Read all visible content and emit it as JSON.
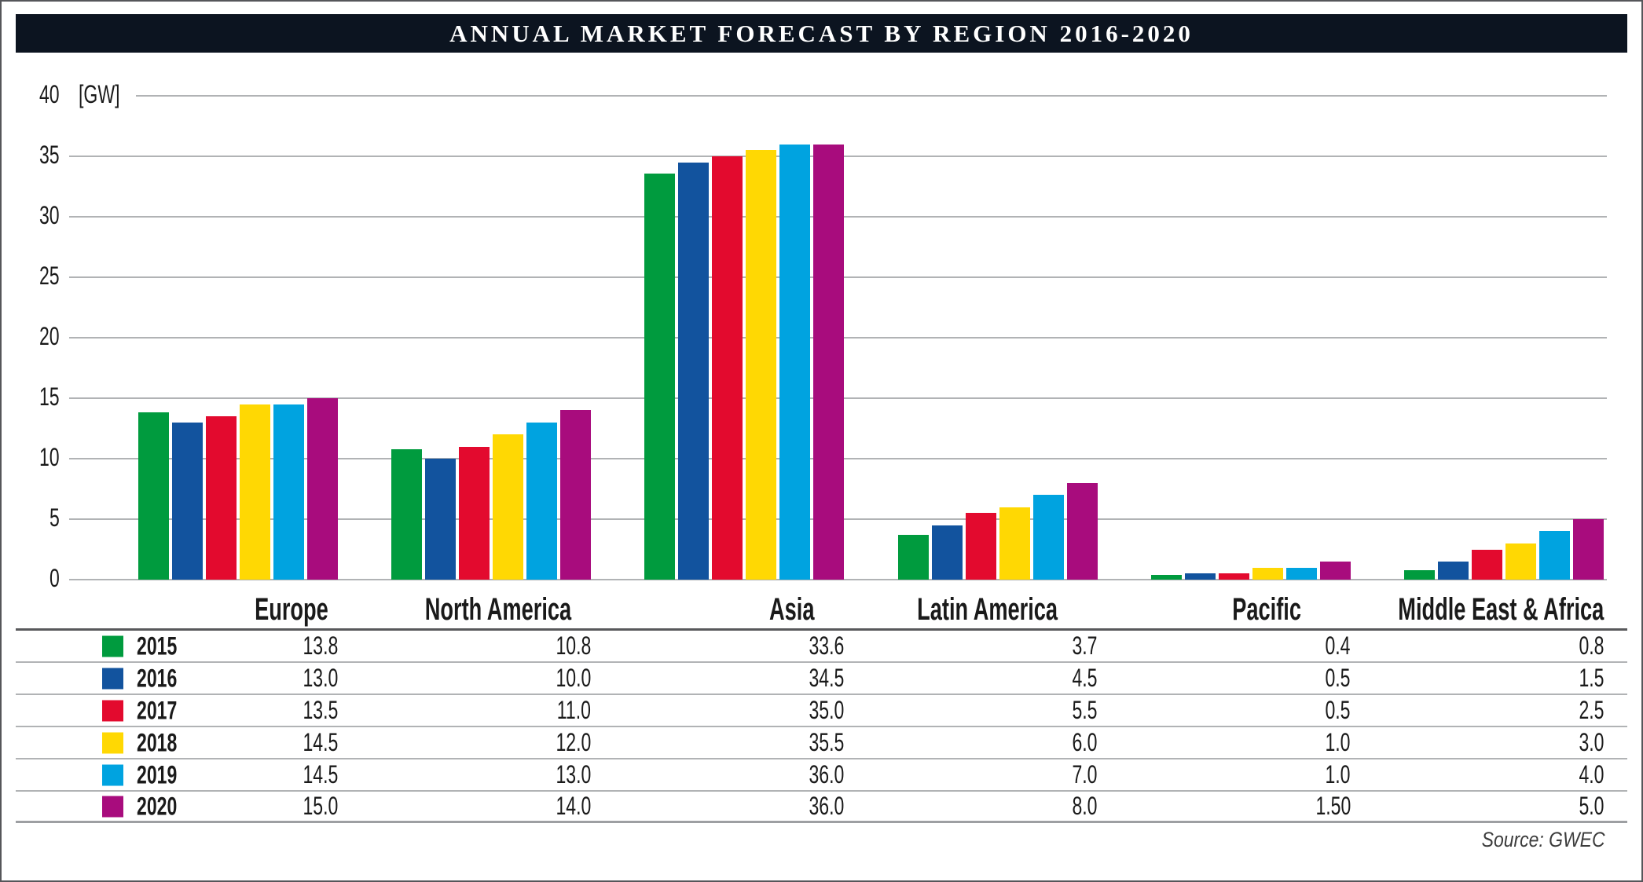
{
  "chart_data": {
    "type": "bar",
    "title": "ANNUAL MARKET FORECAST BY REGION 2016-2020",
    "unit_label": "[GW]",
    "ylabel": "GW",
    "ylim": [
      0,
      40
    ],
    "y_ticks": [
      40,
      35,
      30,
      25,
      20,
      15,
      10,
      5,
      0
    ],
    "grid": "horizontal",
    "legend_position": "table-left-column",
    "categories": [
      "Europe",
      "North America",
      "Asia",
      "Latin America",
      "Pacific",
      "Middle East & Africa"
    ],
    "series": [
      {
        "name": "2015",
        "color": "#009b3e",
        "values": [
          13.8,
          10.8,
          33.6,
          3.7,
          0.4,
          0.8
        ],
        "display": [
          "13.8",
          "10.8",
          "33.6",
          "3.7",
          "0.4",
          "0.8"
        ]
      },
      {
        "name": "2016",
        "color": "#12539e",
        "values": [
          13.0,
          10.0,
          34.5,
          4.5,
          0.5,
          1.5
        ],
        "display": [
          "13.0",
          "10.0",
          "34.5",
          "4.5",
          "0.5",
          "1.5"
        ]
      },
      {
        "name": "2017",
        "color": "#e30a2e",
        "values": [
          13.5,
          11.0,
          35.0,
          5.5,
          0.5,
          2.5
        ],
        "display": [
          "13.5",
          "11.0",
          "35.0",
          "5.5",
          "0.5",
          "2.5"
        ]
      },
      {
        "name": "2018",
        "color": "#ffd803",
        "values": [
          14.5,
          12.0,
          35.5,
          6.0,
          1.0,
          3.0
        ],
        "display": [
          "14.5",
          "12.0",
          "35.5",
          "6.0",
          "1.0",
          "3.0"
        ]
      },
      {
        "name": "2019",
        "color": "#00a3e0",
        "values": [
          14.5,
          13.0,
          36.0,
          7.0,
          1.0,
          4.0
        ],
        "display": [
          "14.5",
          "13.0",
          "36.0",
          "7.0",
          "1.0",
          "4.0"
        ]
      },
      {
        "name": "2020",
        "color": "#a80c7d",
        "values": [
          15.0,
          14.0,
          36.0,
          8.0,
          1.5,
          5.0
        ],
        "display": [
          "15.0",
          "14.0",
          "36.0",
          "8.0",
          "1.50",
          "5.0"
        ]
      }
    ],
    "source": "Source: GWEC"
  }
}
